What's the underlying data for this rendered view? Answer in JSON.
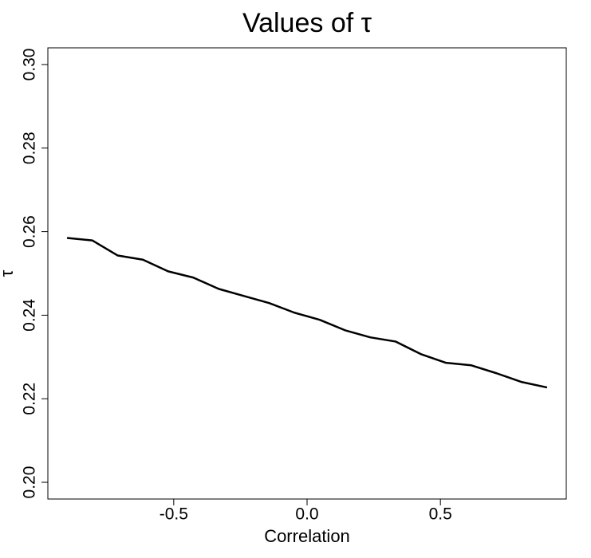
{
  "chart_data": {
    "type": "line",
    "title": "Values of τ",
    "x_label": "Correlation",
    "y_label": "τ",
    "x": [
      -0.9,
      -0.8053,
      -0.7105,
      -0.6158,
      -0.5211,
      -0.4263,
      -0.3316,
      -0.2368,
      -0.1421,
      -0.0474,
      0.0474,
      0.1421,
      0.2368,
      0.3316,
      0.4263,
      0.5211,
      0.6158,
      0.7105,
      0.8053,
      0.9
    ],
    "series": [
      {
        "color": "#000000",
        "values": [
          0.2585,
          0.2579,
          0.2543,
          0.2533,
          0.2505,
          0.249,
          0.2463,
          0.2446,
          0.2429,
          0.2406,
          0.2389,
          0.2364,
          0.2347,
          0.2337,
          0.2307,
          0.2286,
          0.228,
          0.2261,
          0.224,
          0.2227
        ]
      }
    ],
    "xlim": [
      -0.972,
      0.972
    ],
    "xticks": [
      -0.5,
      {
        "value": 0,
        "label": "0.0"
      },
      0.5
    ],
    "ylim": [
      0.196,
      0.304
    ],
    "yticks": [
      {
        "value": 0.2,
        "label": "0.20"
      },
      {
        "value": 0.22,
        "label": "0.22"
      },
      {
        "value": 0.24,
        "label": "0.24"
      },
      {
        "value": 0.26,
        "label": "0.26"
      },
      {
        "value": 0.28,
        "label": "0.28"
      },
      {
        "value": 0.3,
        "label": "0.30"
      }
    ]
  }
}
